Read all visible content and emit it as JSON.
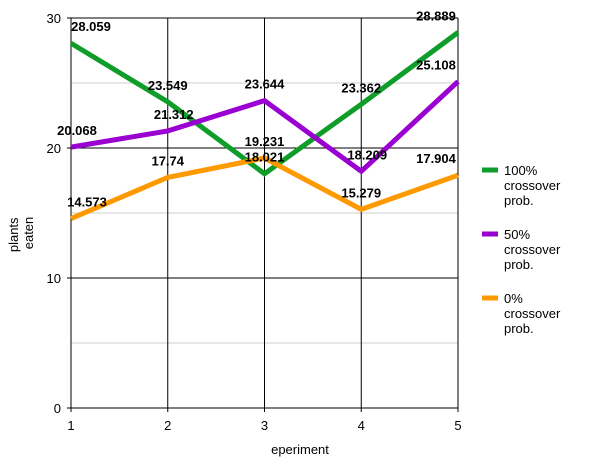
{
  "chart_data": {
    "type": "line",
    "x": [
      1,
      2,
      3,
      4,
      5
    ],
    "xlabel": "eperiment",
    "ylabel": "plants eaten",
    "ylim": [
      0,
      30
    ],
    "yticks": [
      0,
      10,
      20,
      30
    ],
    "grid": true,
    "legend_position": "right",
    "series": [
      {
        "name": "100% crossover prob.",
        "color": "#0f9d2a",
        "values": [
          28.059,
          23.549,
          18.021,
          23.362,
          28.889
        ],
        "labels": [
          "28.059",
          "23.549",
          "18.021",
          "23.362",
          "28.889"
        ]
      },
      {
        "name": "50% crossover prob.",
        "color": "#9b00d3",
        "values": [
          20.068,
          21.312,
          23.644,
          18.209,
          25.108
        ],
        "labels": [
          "20.068",
          "21.312",
          "23.644",
          "18.209",
          "25.108"
        ]
      },
      {
        "name": "0% crossover prob.",
        "color": "#ff9900",
        "values": [
          14.573,
          17.74,
          19.231,
          15.279,
          17.904
        ],
        "labels": [
          "14.573",
          "17.74",
          "19.231",
          "15.279",
          "17.904"
        ]
      }
    ]
  },
  "legend": [
    {
      "lines": [
        "100%",
        "crossover",
        "prob."
      ]
    },
    {
      "lines": [
        "50%",
        "crossover",
        "prob."
      ]
    },
    {
      "lines": [
        "0%",
        "crossover",
        "prob."
      ]
    }
  ]
}
